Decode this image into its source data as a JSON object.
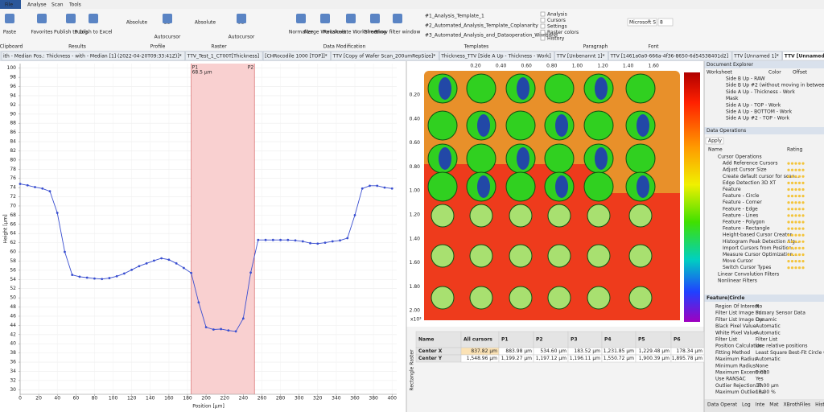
{
  "menu": [
    "File",
    "Analyse",
    "Scan",
    "Tools"
  ],
  "ribbon": {
    "buttons": [
      "Paste",
      "Favorites",
      "Publish to Log",
      "Publish to Excel",
      "Absolute",
      "2D",
      "Autocursor",
      "Absolute",
      "3D",
      "Autocursor",
      "Normalize",
      "Merge Worksheet",
      "Recalculate Worksheet",
      "Trimming",
      "Show filter window"
    ],
    "groups": [
      "Clipboard",
      "Results",
      "Profile",
      "Raster",
      "Data Modification",
      "Templates",
      "Paragraph",
      "Font"
    ],
    "templates": [
      "#1_Analysis_Template_1",
      "#2_Automated_Analysis_Template_Coplanarity",
      "#3_Automated_Analysis_and_Dataoperation_Wirebond"
    ],
    "checks": [
      "Analysis",
      "Cursors",
      "Settings",
      "Raster colors",
      "History"
    ],
    "font": [
      "Microsoft S",
      "8"
    ]
  },
  "tabs": [
    "ith - Median Pos.: Thickness - with - Median [1] (2022-04-20T09:33:41Z)]*",
    "TTV_Test_1_CT00T[Thickness]",
    "[CHRocodile 1000 [TOP]]*",
    "TTV [Copy of Wafer Scan_200umRepSize]*",
    "Thickness_TTV [Side A Up - Thickness - Work]",
    "TTV [Unbenannt 1]*",
    "TTV [1461a0a0-666a-4f36-8650-6d54538401d2]",
    "TTV [Unnamed 1]*",
    "TTV [Unnamed 2]*"
  ],
  "chart_data": {
    "type": "line",
    "x_label": "Position [µm]",
    "y_label": "Height [µm]",
    "x": [
      0,
      8,
      16,
      24,
      32,
      40,
      48,
      56,
      64,
      72,
      80,
      88,
      96,
      104,
      112,
      120,
      128,
      136,
      144,
      152,
      160,
      168,
      176,
      184,
      192,
      200,
      208,
      216,
      224,
      232,
      240,
      248,
      256,
      264,
      272,
      280,
      288,
      296,
      304,
      312,
      320,
      328,
      336,
      344,
      352,
      360,
      368,
      376,
      384,
      392,
      400
    ],
    "values": [
      74.8,
      74.5,
      74.1,
      73.8,
      73.2,
      68.5,
      60,
      55,
      54.6,
      54.4,
      54.2,
      54.1,
      54.3,
      54.7,
      55.3,
      56.1,
      56.9,
      57.5,
      58.1,
      58.6,
      58.3,
      57.5,
      56.5,
      55.4,
      49,
      43.6,
      43.1,
      43.2,
      42.9,
      42.7,
      45.5,
      55.5,
      62.6,
      62.6,
      62.6,
      62.6,
      62.6,
      62.5,
      62.3,
      61.9,
      61.8,
      62,
      62.3,
      62.5,
      63,
      68,
      73.8,
      74.4,
      74.4,
      74,
      73.8
    ],
    "color": "#3a4fd0",
    "xlim": [
      0,
      405
    ],
    "ylim": [
      29,
      101
    ],
    "xticks": [
      0,
      20,
      40,
      60,
      80,
      100,
      120,
      140,
      160,
      180,
      200,
      220,
      240,
      260,
      280,
      300,
      320,
      340,
      360,
      380,
      400
    ],
    "yticks": [
      30,
      32,
      34,
      36,
      38,
      40,
      42,
      44,
      46,
      48,
      50,
      52,
      54,
      56,
      58,
      60,
      62,
      64,
      66,
      68,
      70,
      72,
      74,
      76,
      78,
      80,
      82,
      84,
      86,
      88,
      90,
      92,
      94,
      96,
      98,
      100
    ],
    "grid": true,
    "cursors": {
      "labels": [
        "P1",
        "P2"
      ],
      "x": [
        184,
        252
      ],
      "color": "#f9d0d0",
      "annotation": "68.5 µm"
    }
  },
  "image_view": {
    "xticks": [
      "0.20",
      "0.40",
      "0.60",
      "0.80",
      "1.00",
      "1.20",
      "1.40",
      "1.60"
    ],
    "yticks": [
      "0.20",
      "0.40",
      "0.60",
      "0.80",
      "1.00",
      "1.20",
      "1.40",
      "1.60",
      "1.80",
      "2.00"
    ],
    "scale": "x10³",
    "side_label": "Rectangle Raster"
  },
  "table": {
    "header": [
      "Name",
      "All cursors",
      "P1",
      "P2",
      "P3",
      "P4",
      "P5",
      "P6"
    ],
    "rows": [
      [
        "Center X",
        "837.82 µm",
        "883.98 µm",
        "534.60 µm",
        "183.52 µm",
        "1,231.85 µm",
        "1,229.48 µm",
        "178.34 µm"
      ],
      [
        "Center Y",
        "1,548.96 µm",
        "1,199.27 µm",
        "1,197.12 µm",
        "1,196.11 µm",
        "1,550.72 µm",
        "1,900.39 µm",
        "1,895.78 µm"
      ]
    ]
  },
  "side": {
    "explorer": {
      "title": "Document Explorer",
      "columns": [
        "Worksheet",
        "Color",
        "Offset"
      ],
      "items": [
        "Side B Up - RAW",
        "Side B Up #2 (without moving in between)",
        "Side A Up - Thickness - Work",
        "Mask",
        "Side A Up - TOP - Work",
        "Side A Up - BOTTOM - Work",
        "Side A Up #2 - TOP - Work"
      ]
    },
    "operations": {
      "title": "Data Operations",
      "apply": "Apply",
      "columns": [
        "Name",
        "Rating"
      ],
      "items": [
        "Cursor Operations",
        "Add Reference Cursors",
        "Adjust Cursor Size",
        "Create default cursor for scan...",
        "Edge Detection 3D XT",
        "Feature",
        "Feature - Circle",
        "Feature - Corner",
        "Feature - Edge",
        "Feature - Lines",
        "Feature - Polygon",
        "Feature - Rectangle",
        "Height-based Cursor Creator",
        "Histogram Peak Detection Alg...",
        "Import Cursors from Position...",
        "Measure Cursor Optimization...",
        "Move Cursor",
        "Switch Cursor Types",
        "Linear Convolution Filters",
        "Nonlinear Filters"
      ]
    },
    "properties": {
      "title": "Feature|Circle",
      "rows": [
        [
          "Region Of Interest",
          "No"
        ],
        [
          "Filter List Image So...",
          "Primary Sensor Data"
        ],
        [
          "Filter List Image Cre...",
          "Dynamic"
        ],
        [
          "Black Pixel Value",
          "Automatic"
        ],
        [
          "White Pixel Value",
          "Automatic"
        ],
        [
          "Filter List",
          "Filter List"
        ],
        [
          "Position Calculation",
          "Use relative positions"
        ],
        [
          "Fitting Method",
          "Least Square Best-Fit Circle (LS"
        ],
        [
          "Maximum Radius",
          "Automatic"
        ],
        [
          "Minimum Radius",
          "None"
        ],
        [
          "Maximum Excentricit",
          "0.000"
        ],
        [
          "Use RANSAC",
          "Yes"
        ],
        [
          "Outlier Rejection Th",
          "10.00 µm"
        ],
        [
          "Maximum Outlier Ra",
          "10.00 %"
        ]
      ]
    },
    "bottom_tabs": [
      "Data Operat",
      "Log",
      "Inte",
      "Mat",
      "XBrothFiles",
      "Histogr"
    ]
  }
}
